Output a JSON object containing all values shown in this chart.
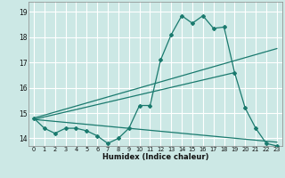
{
  "xlabel": "Humidex (Indice chaleur)",
  "bg_color": "#cce8e5",
  "grid_color": "#ffffff",
  "line_color": "#1a7a6e",
  "xlim": [
    -0.5,
    23.5
  ],
  "ylim": [
    13.7,
    19.4
  ],
  "xticks": [
    0,
    1,
    2,
    3,
    4,
    5,
    6,
    7,
    8,
    9,
    10,
    11,
    12,
    13,
    14,
    15,
    16,
    17,
    18,
    19,
    20,
    21,
    22,
    23
  ],
  "yticks": [
    14,
    15,
    16,
    17,
    18,
    19
  ],
  "series1_x": [
    0,
    1,
    2,
    3,
    4,
    5,
    6,
    7,
    8,
    9,
    10,
    11,
    12,
    13,
    14,
    15,
    16,
    17,
    18,
    19,
    20,
    21,
    22,
    23
  ],
  "series1_y": [
    14.8,
    14.4,
    14.2,
    14.4,
    14.4,
    14.3,
    14.1,
    13.8,
    14.0,
    14.4,
    15.3,
    15.3,
    17.1,
    18.1,
    18.85,
    18.55,
    18.85,
    18.35,
    18.4,
    16.6,
    15.2,
    14.4,
    13.8,
    13.7
  ],
  "line1_x": [
    0,
    23
  ],
  "line1_y": [
    14.8,
    17.55
  ],
  "line2_x": [
    0,
    23
  ],
  "line2_y": [
    14.75,
    13.85
  ],
  "line3_x": [
    0,
    19
  ],
  "line3_y": [
    14.75,
    16.6
  ]
}
